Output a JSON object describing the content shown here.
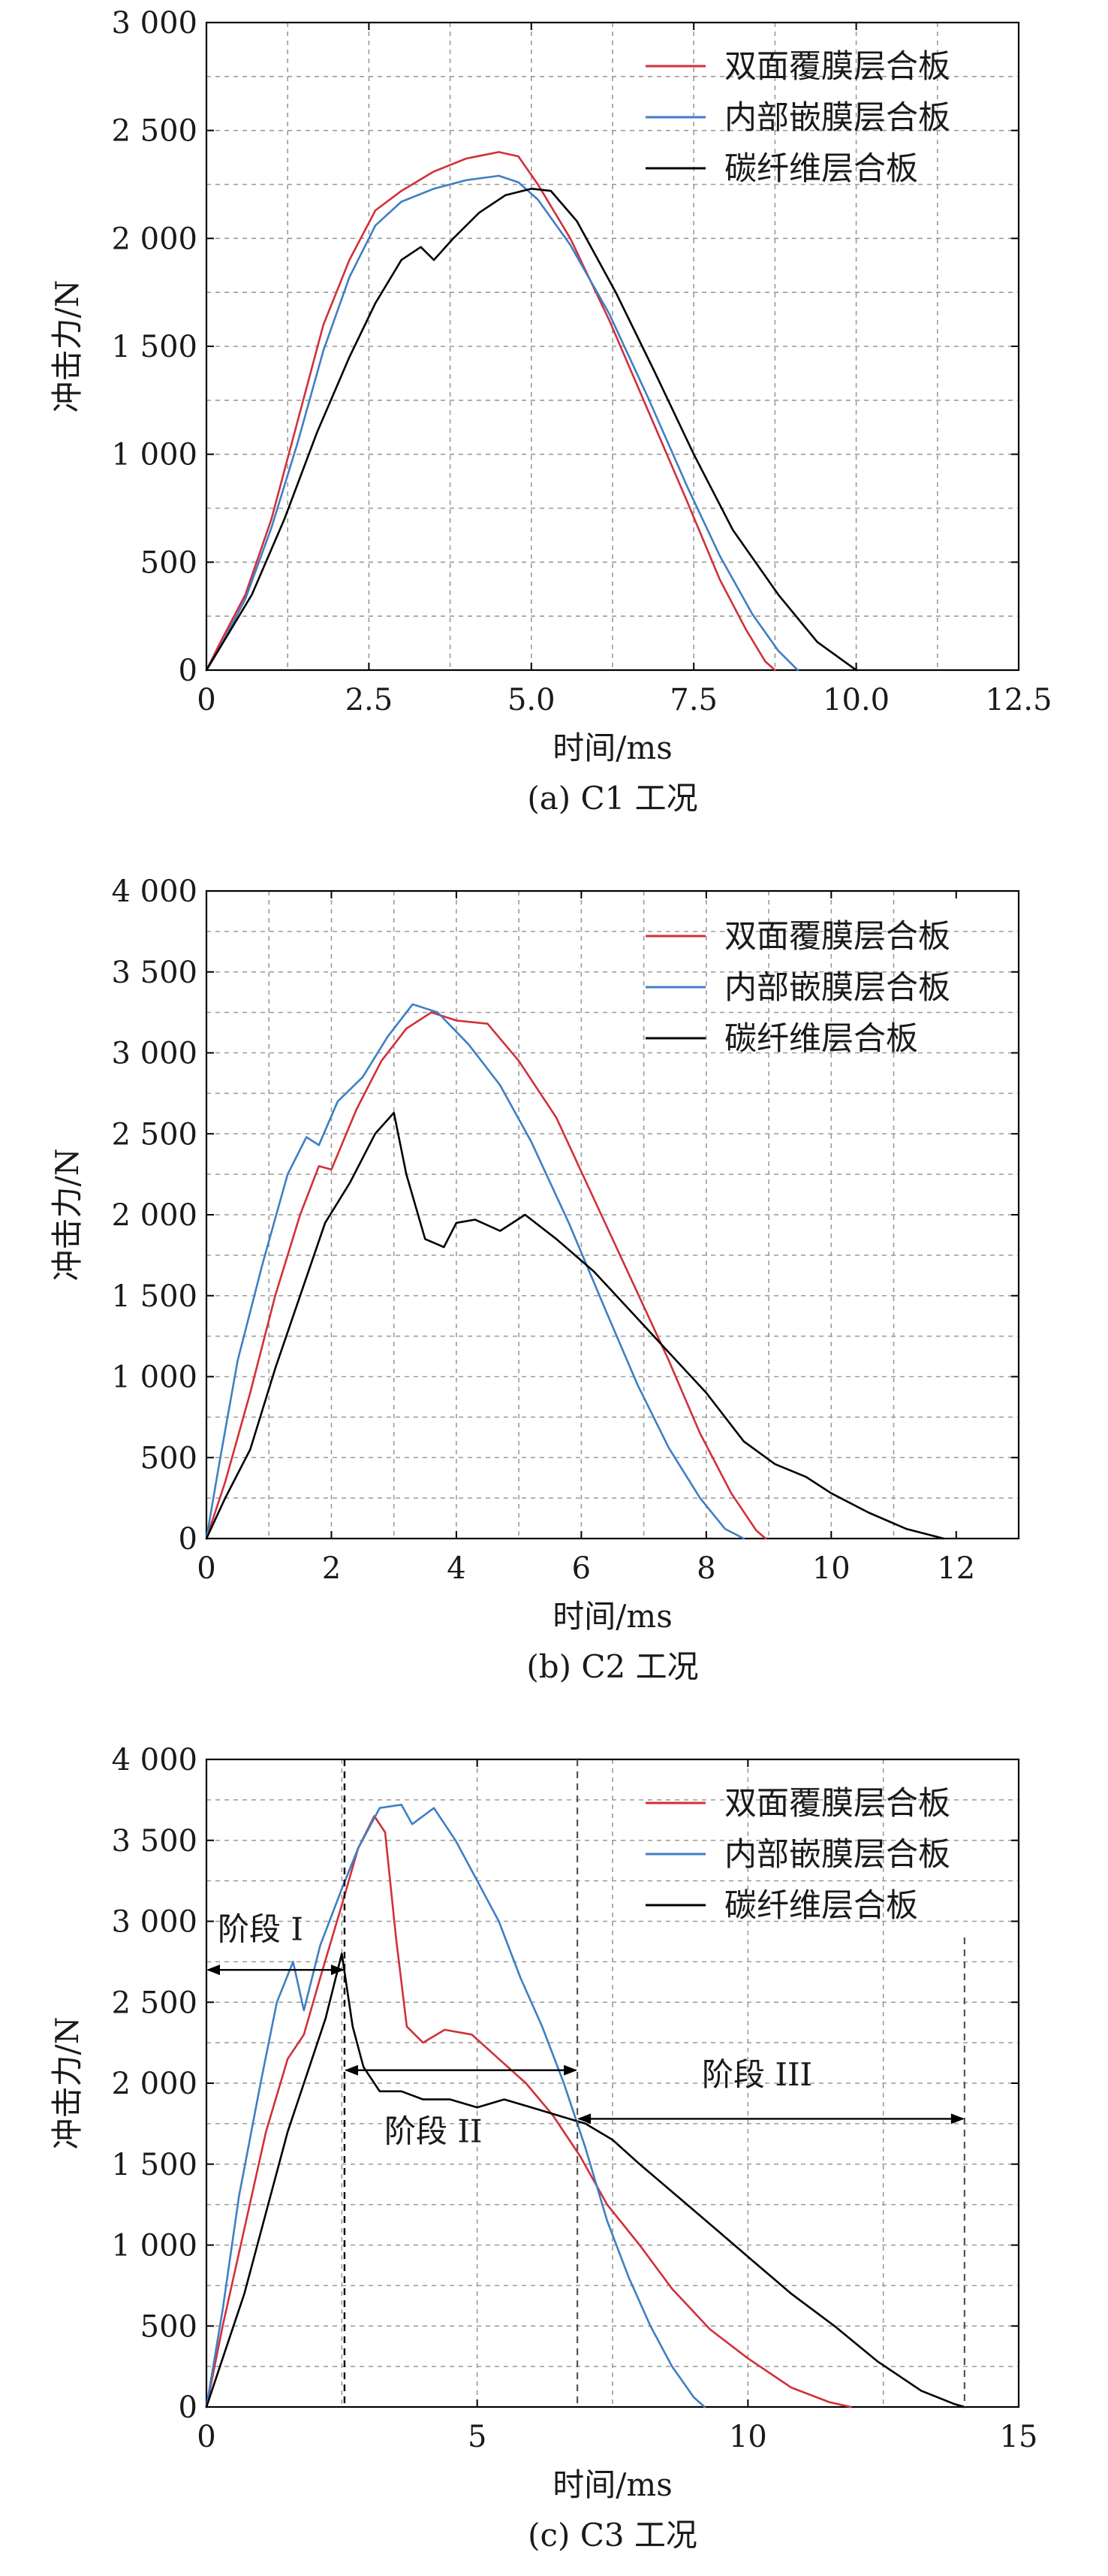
{
  "chart_data": [
    {
      "type": "line",
      "caption": "(a) C1 工况",
      "xlabel": "时间/ms",
      "ylabel": "冲击力/N",
      "xlim": [
        0,
        12.5
      ],
      "ylim": [
        0,
        3000
      ],
      "xticks": [
        0,
        2.5,
        5.0,
        7.5,
        10.0,
        12.5
      ],
      "xtick_labels": [
        "0",
        "2.5",
        "5.0",
        "7.5",
        "10.0",
        "12.5"
      ],
      "yticks": [
        0,
        500,
        1000,
        1500,
        2000,
        2500,
        3000
      ],
      "ytick_labels": [
        "0",
        "500",
        "1 000",
        "1 500",
        "2 000",
        "2 500",
        "3 000"
      ],
      "grid": true,
      "legend_position": "top-right",
      "series": [
        {
          "name": "双面覆膜层合板",
          "color": "#d1303a",
          "x": [
            0,
            0.2,
            0.6,
            1.0,
            1.4,
            1.8,
            2.2,
            2.6,
            3.0,
            3.5,
            4.0,
            4.5,
            4.8,
            5.1,
            5.6,
            6.2,
            6.8,
            7.4,
            7.9,
            8.3,
            8.6,
            8.75
          ],
          "y": [
            0,
            120,
            350,
            700,
            1150,
            1600,
            1900,
            2130,
            2220,
            2310,
            2370,
            2400,
            2380,
            2250,
            2000,
            1620,
            1200,
            780,
            420,
            190,
            40,
            0
          ]
        },
        {
          "name": "内部嵌膜层合板",
          "color": "#3f7fc4",
          "x": [
            0,
            0.2,
            0.6,
            1.0,
            1.4,
            1.8,
            2.2,
            2.6,
            3.0,
            3.5,
            4.0,
            4.5,
            4.8,
            5.1,
            5.6,
            6.2,
            6.8,
            7.4,
            7.9,
            8.4,
            8.8,
            9.1
          ],
          "y": [
            0,
            100,
            330,
            660,
            1050,
            1480,
            1820,
            2060,
            2170,
            2230,
            2270,
            2290,
            2260,
            2180,
            1970,
            1650,
            1260,
            850,
            530,
            260,
            90,
            0
          ]
        },
        {
          "name": "碳纤维层合板",
          "color": "#000000",
          "x": [
            0,
            0.3,
            0.7,
            1.2,
            1.7,
            2.2,
            2.6,
            3.0,
            3.3,
            3.5,
            3.8,
            4.2,
            4.6,
            5.0,
            5.3,
            5.7,
            6.3,
            6.9,
            7.5,
            8.1,
            8.8,
            9.4,
            10.0
          ],
          "y": [
            0,
            150,
            350,
            700,
            1100,
            1450,
            1700,
            1900,
            1960,
            1900,
            2000,
            2120,
            2200,
            2230,
            2220,
            2080,
            1750,
            1380,
            1000,
            650,
            350,
            130,
            0
          ]
        }
      ]
    },
    {
      "type": "line",
      "caption": "(b) C2 工况",
      "xlabel": "时间/ms",
      "ylabel": "冲击力/N",
      "xlim": [
        0,
        13
      ],
      "ylim": [
        0,
        4000
      ],
      "xticks": [
        0,
        2,
        4,
        6,
        8,
        10,
        12
      ],
      "xtick_labels": [
        "0",
        "2",
        "4",
        "6",
        "8",
        "10",
        "12"
      ],
      "yticks": [
        0,
        500,
        1000,
        1500,
        2000,
        2500,
        3000,
        3500,
        4000
      ],
      "ytick_labels": [
        "0",
        "500",
        "1 000",
        "1 500",
        "2 000",
        "2 500",
        "3 000",
        "3 500",
        "4 000"
      ],
      "grid": true,
      "legend_position": "top-right",
      "series": [
        {
          "name": "双面覆膜层合板",
          "color": "#d1303a",
          "x": [
            0,
            0.3,
            0.7,
            1.1,
            1.5,
            1.8,
            2.0,
            2.4,
            2.8,
            3.2,
            3.6,
            4.0,
            4.5,
            5.0,
            5.6,
            6.2,
            6.8,
            7.4,
            7.9,
            8.4,
            8.8,
            8.95
          ],
          "y": [
            0,
            350,
            900,
            1500,
            2000,
            2300,
            2280,
            2650,
            2950,
            3150,
            3250,
            3200,
            3180,
            2950,
            2600,
            2100,
            1600,
            1100,
            650,
            280,
            50,
            0
          ]
        },
        {
          "name": "内部嵌膜层合板",
          "color": "#3f7fc4",
          "x": [
            0,
            0.2,
            0.5,
            0.9,
            1.3,
            1.6,
            1.8,
            2.1,
            2.5,
            2.9,
            3.3,
            3.7,
            4.2,
            4.7,
            5.2,
            5.8,
            6.4,
            6.9,
            7.4,
            7.9,
            8.3,
            8.6
          ],
          "y": [
            0,
            450,
            1100,
            1700,
            2250,
            2480,
            2430,
            2700,
            2850,
            3100,
            3300,
            3250,
            3050,
            2800,
            2450,
            1950,
            1400,
            950,
            560,
            250,
            60,
            0
          ]
        },
        {
          "name": "碳纤维层合板",
          "color": "#000000",
          "x": [
            0,
            0.3,
            0.7,
            1.1,
            1.5,
            1.9,
            2.3,
            2.7,
            3.0,
            3.2,
            3.5,
            3.8,
            4.0,
            4.3,
            4.7,
            5.1,
            5.6,
            6.2,
            6.8,
            7.4,
            8.0,
            8.6,
            9.1,
            9.6,
            10.0,
            10.6,
            11.2,
            11.8
          ],
          "y": [
            0,
            250,
            550,
            1050,
            1500,
            1950,
            2200,
            2500,
            2630,
            2250,
            1850,
            1800,
            1950,
            1970,
            1900,
            2000,
            1850,
            1650,
            1400,
            1150,
            900,
            600,
            460,
            380,
            280,
            160,
            60,
            0
          ]
        }
      ]
    },
    {
      "type": "line",
      "caption": "(c) C3 工况",
      "xlabel": "时间/ms",
      "ylabel": "冲击力/N",
      "xlim": [
        0,
        15
      ],
      "ylim": [
        0,
        4000
      ],
      "xticks": [
        0,
        5,
        10,
        15
      ],
      "xtick_labels": [
        "0",
        "5",
        "10",
        "15"
      ],
      "yticks": [
        0,
        500,
        1000,
        1500,
        2000,
        2500,
        3000,
        3500,
        4000
      ],
      "ytick_labels": [
        "0",
        "500",
        "1 000",
        "1 500",
        "2 000",
        "2 500",
        "3 000",
        "3 500",
        "4 000"
      ],
      "grid": true,
      "legend_position": "top-right",
      "series": [
        {
          "name": "双面覆膜层合板",
          "color": "#d1303a",
          "x": [
            0,
            0.3,
            0.7,
            1.1,
            1.5,
            1.8,
            2.1,
            2.5,
            2.8,
            3.1,
            3.3,
            3.5,
            3.7,
            4.0,
            4.4,
            4.9,
            5.4,
            5.9,
            6.4,
            6.9,
            7.4,
            8.0,
            8.6,
            9.3,
            10.0,
            10.8,
            11.5,
            11.9
          ],
          "y": [
            0,
            500,
            1100,
            1700,
            2150,
            2300,
            2650,
            3100,
            3450,
            3650,
            3550,
            2900,
            2350,
            2250,
            2330,
            2300,
            2150,
            2000,
            1800,
            1550,
            1250,
            1000,
            730,
            480,
            300,
            120,
            30,
            0
          ]
        },
        {
          "name": "内部嵌膜层合板",
          "color": "#3f7fc4",
          "x": [
            0,
            0.3,
            0.6,
            1.0,
            1.3,
            1.6,
            1.8,
            2.1,
            2.5,
            2.8,
            3.2,
            3.6,
            3.8,
            4.2,
            4.6,
            5.0,
            5.4,
            5.8,
            6.2,
            6.6,
            7.0,
            7.4,
            7.8,
            8.2,
            8.6,
            9.0,
            9.2
          ],
          "y": [
            0,
            600,
            1300,
            2000,
            2500,
            2750,
            2450,
            2850,
            3200,
            3450,
            3700,
            3720,
            3600,
            3700,
            3500,
            3250,
            3000,
            2650,
            2350,
            2000,
            1600,
            1150,
            800,
            500,
            250,
            60,
            0
          ]
        },
        {
          "name": "碳纤维层合板",
          "color": "#000000",
          "x": [
            0,
            0.3,
            0.7,
            1.1,
            1.5,
            1.9,
            2.2,
            2.5,
            2.7,
            2.9,
            3.2,
            3.6,
            4.0,
            4.5,
            5.0,
            5.5,
            6.0,
            6.5,
            7.0,
            7.5,
            8.0,
            8.7,
            9.4,
            10.1,
            10.8,
            11.6,
            12.4,
            13.2,
            13.8,
            14.0
          ],
          "y": [
            0,
            300,
            700,
            1200,
            1700,
            2100,
            2400,
            2800,
            2350,
            2100,
            1950,
            1950,
            1900,
            1900,
            1850,
            1900,
            1850,
            1800,
            1750,
            1650,
            1500,
            1300,
            1100,
            900,
            700,
            500,
            280,
            100,
            20,
            0
          ]
        }
      ],
      "annotations": {
        "stage1": "阶段 I",
        "stage2": "阶段 II",
        "stage3": "阶段 III",
        "stage_boundaries_ms": [
          2.55,
          6.85,
          14.0
        ],
        "stage1_arrow_y": 2700,
        "stage2_arrow_y": 2080,
        "stage3_arrow_y": 1780
      }
    }
  ]
}
